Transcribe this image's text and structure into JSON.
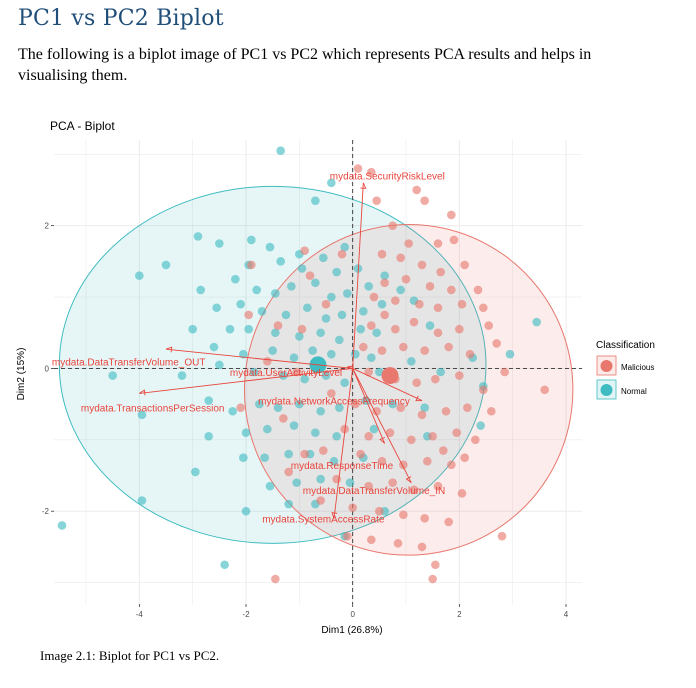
{
  "heading": "PC1 vs PC2 Biplot",
  "intro": "The following is a biplot image of PC1 vs PC2 which represents PCA results and helps in visualising them.",
  "caption": "Image 2.1: Biplot for PC1 vs PC2.",
  "colors": {
    "malicious": "#e8776e",
    "normal": "#3fbcc1",
    "arrow": "#e8453c",
    "dashed": "#333333",
    "grid": "#ebebeb"
  },
  "chart_data": {
    "type": "scatter",
    "title": "PCA - Biplot",
    "xlabel": "Dim1 (26.8%)",
    "ylabel": "Dim2 (15%)",
    "xlim": [
      -5.6,
      4.3
    ],
    "ylim": [
      -3.3,
      3.2
    ],
    "x_ticks": [
      -4,
      -2,
      0,
      2,
      4
    ],
    "y_ticks": [
      -2,
      0,
      2
    ],
    "grid": true,
    "legend": {
      "title": "Classification",
      "position": "right",
      "entries": [
        "Malicious",
        "Normal"
      ]
    },
    "centroids": [
      {
        "group": "Malicious",
        "x": 0.7,
        "y": -0.1
      },
      {
        "group": "Normal",
        "x": -0.65,
        "y": 0.05
      }
    ],
    "ellipses": [
      {
        "group": "Normal",
        "cx": -1.5,
        "cy": 0.05,
        "rx": 4.0,
        "ry": 2.5,
        "rotation_deg": 0
      },
      {
        "group": "Malicious",
        "cx": 1.05,
        "cy": -0.3,
        "rx": 3.1,
        "ry": 2.3,
        "rotation_deg": -83
      }
    ],
    "loadings": [
      {
        "label": "mydata.SecurityRiskLevel",
        "x": 0.2,
        "y": 2.6,
        "lx": 0.65,
        "ly": 2.7
      },
      {
        "label": "mydata.DataTransferVolume_OUT",
        "x": -3.5,
        "y": 0.27,
        "lx": -4.2,
        "ly": 0.1
      },
      {
        "label": "mydata.UserActivityLevel",
        "x": -0.1,
        "y": 0.02,
        "lx": -1.25,
        "ly": -0.05
      },
      {
        "label": "mydata.TransactionsPerSession",
        "x": -4.0,
        "y": -0.35,
        "lx": -3.75,
        "ly": -0.55
      },
      {
        "label": "mydata.NetworkAccessFrequency",
        "x": 1.3,
        "y": -0.45,
        "lx": -0.35,
        "ly": -0.45
      },
      {
        "label": "mydata.ResponseTime",
        "x": 0.6,
        "y": -1.05,
        "lx": -0.2,
        "ly": -1.35
      },
      {
        "label": "mydata.DataTransferVolume_IN",
        "x": 1.1,
        "y": -1.6,
        "lx": 0.4,
        "ly": -1.7
      },
      {
        "label": "mydata.SystemAccessRate",
        "x": -0.35,
        "y": -2.1,
        "lx": -0.55,
        "ly": -2.1
      }
    ],
    "series": [
      {
        "name": "Normal",
        "points": [
          [
            -1.35,
            3.05
          ],
          [
            -0.4,
            2.6
          ],
          [
            -0.7,
            2.35
          ],
          [
            -2.9,
            1.85
          ],
          [
            -2.5,
            1.75
          ],
          [
            -1.9,
            1.8
          ],
          [
            -1.55,
            1.7
          ],
          [
            -1.0,
            1.6
          ],
          [
            -0.55,
            1.55
          ],
          [
            -0.15,
            1.7
          ],
          [
            -1.95,
            1.45
          ],
          [
            -1.35,
            1.5
          ],
          [
            -0.95,
            1.4
          ],
          [
            -0.3,
            1.35
          ],
          [
            0.1,
            1.4
          ],
          [
            -4.0,
            1.3
          ],
          [
            -3.5,
            1.45
          ],
          [
            -2.85,
            1.1
          ],
          [
            -2.2,
            1.25
          ],
          [
            -1.8,
            1.1
          ],
          [
            -1.45,
            1.05
          ],
          [
            -1.15,
            1.15
          ],
          [
            -0.7,
            1.2
          ],
          [
            -0.4,
            1.0
          ],
          [
            -0.1,
            1.05
          ],
          [
            0.3,
            1.15
          ],
          [
            0.6,
            1.3
          ],
          [
            0.9,
            1.1
          ],
          [
            -2.55,
            0.85
          ],
          [
            -2.1,
            0.9
          ],
          [
            -1.7,
            0.8
          ],
          [
            -1.25,
            0.75
          ],
          [
            -0.85,
            0.85
          ],
          [
            -0.5,
            0.7
          ],
          [
            -0.2,
            0.75
          ],
          [
            0.2,
            0.8
          ],
          [
            0.55,
            0.9
          ],
          [
            1.15,
            0.95
          ],
          [
            -3.0,
            0.55
          ],
          [
            -2.3,
            0.55
          ],
          [
            -1.95,
            0.55
          ],
          [
            -1.45,
            0.5
          ],
          [
            -1.0,
            0.45
          ],
          [
            -0.6,
            0.5
          ],
          [
            -0.25,
            0.4
          ],
          [
            0.15,
            0.55
          ],
          [
            0.45,
            0.5
          ],
          [
            1.45,
            0.6
          ],
          [
            -2.6,
            0.3
          ],
          [
            -2.05,
            0.2
          ],
          [
            -1.5,
            0.25
          ],
          [
            -1.1,
            0.15
          ],
          [
            -0.75,
            0.25
          ],
          [
            -0.4,
            0.2
          ],
          [
            0.05,
            0.2
          ],
          [
            0.35,
            0.15
          ],
          [
            1.1,
            0.1
          ],
          [
            2.25,
            0.15
          ],
          [
            2.95,
            0.2
          ],
          [
            3.45,
            0.65
          ],
          [
            -4.5,
            -0.1
          ],
          [
            -3.2,
            -0.1
          ],
          [
            -2.5,
            0.05
          ],
          [
            -1.85,
            -0.05
          ],
          [
            -1.3,
            -0.1
          ],
          [
            -0.9,
            -0.15
          ],
          [
            -0.5,
            -0.1
          ],
          [
            -0.15,
            -0.2
          ],
          [
            0.5,
            -0.05
          ],
          [
            1.65,
            -0.05
          ],
          [
            2.45,
            -0.25
          ],
          [
            -3.95,
            -0.65
          ],
          [
            -2.7,
            -0.45
          ],
          [
            -2.25,
            -0.6
          ],
          [
            -1.75,
            -0.5
          ],
          [
            -1.4,
            -0.55
          ],
          [
            -1.0,
            -0.5
          ],
          [
            -0.6,
            -0.6
          ],
          [
            -0.25,
            -0.55
          ],
          [
            0.25,
            -0.45
          ],
          [
            0.75,
            -0.5
          ],
          [
            1.35,
            -0.55
          ],
          [
            -2.7,
            -0.95
          ],
          [
            -2.0,
            -0.9
          ],
          [
            -1.6,
            -0.85
          ],
          [
            -1.1,
            -0.8
          ],
          [
            -0.7,
            -0.9
          ],
          [
            -0.3,
            -0.95
          ],
          [
            0.4,
            -0.85
          ],
          [
            1.4,
            -0.95
          ],
          [
            2.4,
            -0.8
          ],
          [
            -2.95,
            -1.45
          ],
          [
            -2.05,
            -1.25
          ],
          [
            -1.65,
            -1.25
          ],
          [
            -1.2,
            -1.2
          ],
          [
            -0.8,
            -1.2
          ],
          [
            -0.35,
            -1.3
          ],
          [
            0.2,
            -1.25
          ],
          [
            -1.55,
            -1.65
          ],
          [
            -1.05,
            -1.6
          ],
          [
            -0.6,
            -1.55
          ],
          [
            -0.05,
            -1.6
          ],
          [
            -1.2,
            -1.9
          ],
          [
            -0.7,
            -1.9
          ],
          [
            -2.0,
            -2.0
          ],
          [
            -3.95,
            -1.85
          ],
          [
            -5.45,
            -2.2
          ],
          [
            -0.15,
            -2.35
          ],
          [
            -2.4,
            -2.75
          ],
          [
            0.6,
            -2.0
          ]
        ]
      },
      {
        "name": "Malicious",
        "points": [
          [
            0.1,
            2.8
          ],
          [
            0.35,
            2.75
          ],
          [
            1.2,
            2.5
          ],
          [
            1.35,
            2.35
          ],
          [
            1.85,
            2.15
          ],
          [
            0.45,
            2.35
          ],
          [
            0.75,
            2.0
          ],
          [
            1.05,
            1.75
          ],
          [
            1.6,
            1.75
          ],
          [
            1.9,
            1.8
          ],
          [
            0.55,
            1.6
          ],
          [
            0.9,
            1.55
          ],
          [
            1.3,
            1.45
          ],
          [
            1.65,
            1.35
          ],
          [
            2.1,
            1.45
          ],
          [
            -1.9,
            1.45
          ],
          [
            -0.9,
            1.65
          ],
          [
            -0.2,
            1.6
          ],
          [
            0.6,
            1.2
          ],
          [
            1.0,
            1.25
          ],
          [
            1.45,
            1.15
          ],
          [
            1.85,
            1.1
          ],
          [
            2.35,
            1.1
          ],
          [
            -0.8,
            1.3
          ],
          [
            0.4,
            1.0
          ],
          [
            0.8,
            0.95
          ],
          [
            1.25,
            0.9
          ],
          [
            1.6,
            0.85
          ],
          [
            2.05,
            0.9
          ],
          [
            2.45,
            0.85
          ],
          [
            -0.5,
            0.9
          ],
          [
            0.35,
            0.6
          ],
          [
            0.8,
            0.55
          ],
          [
            1.15,
            0.65
          ],
          [
            1.6,
            0.5
          ],
          [
            2.0,
            0.55
          ],
          [
            2.55,
            0.6
          ],
          [
            -1.95,
            0.75
          ],
          [
            -1.4,
            0.6
          ],
          [
            -0.95,
            0.55
          ],
          [
            0.2,
            0.3
          ],
          [
            0.55,
            0.25
          ],
          [
            0.95,
            0.3
          ],
          [
            1.35,
            0.25
          ],
          [
            1.8,
            0.3
          ],
          [
            2.2,
            0.2
          ],
          [
            2.7,
            0.35
          ],
          [
            3.6,
            -0.3
          ],
          [
            0.3,
            -0.05
          ],
          [
            0.8,
            -0.15
          ],
          [
            1.2,
            -0.2
          ],
          [
            1.55,
            -0.15
          ],
          [
            2.0,
            -0.1
          ],
          [
            2.45,
            -0.3
          ],
          [
            2.85,
            -0.05
          ],
          [
            -1.6,
            0.1
          ],
          [
            -1.05,
            -0.05
          ],
          [
            -0.4,
            -0.35
          ],
          [
            0.05,
            -0.5
          ],
          [
            0.45,
            -0.6
          ],
          [
            0.9,
            -0.55
          ],
          [
            1.3,
            -0.65
          ],
          [
            1.75,
            -0.6
          ],
          [
            2.15,
            -0.55
          ],
          [
            2.6,
            -0.6
          ],
          [
            -2.1,
            -0.55
          ],
          [
            -1.3,
            -0.7
          ],
          [
            -0.15,
            -0.85
          ],
          [
            0.3,
            -0.95
          ],
          [
            0.7,
            -0.9
          ],
          [
            1.1,
            -1.0
          ],
          [
            1.5,
            -0.95
          ],
          [
            1.95,
            -0.9
          ],
          [
            2.3,
            -1.0
          ],
          [
            -0.55,
            -1.15
          ],
          [
            0.15,
            -1.2
          ],
          [
            0.55,
            -1.3
          ],
          [
            0.95,
            -1.35
          ],
          [
            1.4,
            -1.3
          ],
          [
            1.85,
            -1.35
          ],
          [
            -1.2,
            -1.45
          ],
          [
            -0.3,
            -1.55
          ],
          [
            0.3,
            -1.65
          ],
          [
            0.75,
            -1.6
          ],
          [
            1.15,
            -1.7
          ],
          [
            1.6,
            -1.65
          ],
          [
            2.05,
            -1.75
          ],
          [
            -0.6,
            -1.85
          ],
          [
            0.0,
            -1.95
          ],
          [
            0.5,
            -2.0
          ],
          [
            0.95,
            -2.05
          ],
          [
            1.35,
            -2.1
          ],
          [
            1.8,
            -2.15
          ],
          [
            -0.1,
            -2.35
          ],
          [
            0.35,
            -2.4
          ],
          [
            0.85,
            -2.45
          ],
          [
            1.3,
            -2.5
          ],
          [
            2.8,
            -2.35
          ],
          [
            1.55,
            -2.75
          ],
          [
            -1.45,
            -2.95
          ],
          [
            1.5,
            -2.95
          ],
          [
            -0.9,
            -1.2
          ],
          [
            0.6,
            0.75
          ],
          [
            1.7,
            -1.15
          ],
          [
            2.1,
            -1.25
          ]
        ]
      }
    ]
  }
}
